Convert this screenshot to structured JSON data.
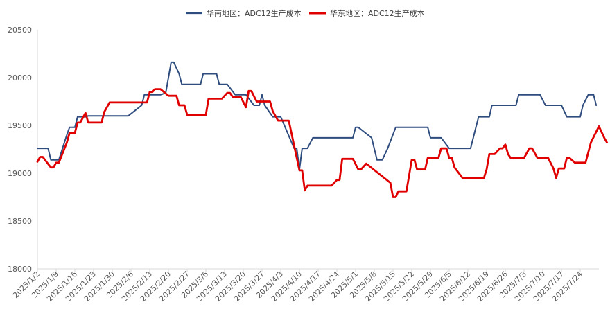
{
  "chart_data": {
    "type": "line",
    "title": "",
    "xlabel": "",
    "ylabel": "",
    "ylim": [
      18000,
      20500
    ],
    "yticks": [
      18000,
      18500,
      19000,
      19500,
      20000,
      20500
    ],
    "grid": false,
    "legend": "top",
    "x_tick_labels": [
      "2025/1/2",
      "2025/1/9",
      "2025/1/16",
      "2025/1/23",
      "2025/1/30",
      "2025/2/6",
      "2025/2/13",
      "2025/2/20",
      "2025/2/27",
      "2025/3/6",
      "2025/3/13",
      "2025/3/20",
      "2025/3/27",
      "2025/4/3",
      "2025/4/10",
      "2025/4/17",
      "2025/4/24",
      "2025/5/1",
      "2025/5/8",
      "2025/5/15",
      "2025/5/22",
      "2025/5/29",
      "2025/6/5",
      "2025/6/12",
      "2025/6/19",
      "2025/6/26",
      "2025/7/3",
      "2025/7/10",
      "2025/7/17",
      "2025/7/24"
    ],
    "series": [
      {
        "name": "华南地区：ADC12生产成本",
        "color": "#2E4C7E",
        "points": [
          [
            "2025/1/2",
            19260
          ],
          [
            "2025/1/6",
            19260
          ],
          [
            "2025/1/7",
            19140
          ],
          [
            "2025/1/10",
            19140
          ],
          [
            "2025/1/13",
            19400
          ],
          [
            "2025/1/14",
            19480
          ],
          [
            "2025/1/16",
            19480
          ],
          [
            "2025/1/17",
            19590
          ],
          [
            "2025/1/20",
            19590
          ],
          [
            "2025/1/21",
            19600
          ],
          [
            "2025/1/27",
            19600
          ],
          [
            "2025/2/5",
            19600
          ],
          [
            "2025/2/10",
            19710
          ],
          [
            "2025/2/11",
            19820
          ],
          [
            "2025/2/17",
            19820
          ],
          [
            "2025/2/19",
            19840
          ],
          [
            "2025/2/21",
            20160
          ],
          [
            "2025/2/22",
            20160
          ],
          [
            "2025/2/24",
            20040
          ],
          [
            "2025/2/25",
            19930
          ],
          [
            "2025/3/4",
            19930
          ],
          [
            "2025/3/5",
            20040
          ],
          [
            "2025/3/10",
            20040
          ],
          [
            "2025/3/11",
            19930
          ],
          [
            "2025/3/14",
            19930
          ],
          [
            "2025/3/17",
            19820
          ],
          [
            "2025/3/21",
            19820
          ],
          [
            "2025/3/24",
            19710
          ],
          [
            "2025/3/26",
            19710
          ],
          [
            "2025/3/27",
            19820
          ],
          [
            "2025/3/28",
            19710
          ],
          [
            "2025/3/31",
            19590
          ],
          [
            "2025/4/3",
            19590
          ],
          [
            "2025/4/8",
            19260
          ],
          [
            "2025/4/9",
            19260
          ],
          [
            "2025/4/10",
            19040
          ],
          [
            "2025/4/11",
            19260
          ],
          [
            "2025/4/13",
            19260
          ],
          [
            "2025/4/15",
            19370
          ],
          [
            "2025/4/30",
            19370
          ],
          [
            "2025/5/1",
            19480
          ],
          [
            "2025/5/2",
            19480
          ],
          [
            "2025/5/7",
            19370
          ],
          [
            "2025/5/9",
            19140
          ],
          [
            "2025/5/11",
            19140
          ],
          [
            "2025/5/13",
            19260
          ],
          [
            "2025/5/16",
            19480
          ],
          [
            "2025/5/28",
            19480
          ],
          [
            "2025/5/29",
            19370
          ],
          [
            "2025/6/2",
            19370
          ],
          [
            "2025/6/5",
            19260
          ],
          [
            "2025/6/13",
            19260
          ],
          [
            "2025/6/16",
            19590
          ],
          [
            "2025/6/20",
            19590
          ],
          [
            "2025/6/21",
            19710
          ],
          [
            "2025/6/30",
            19710
          ],
          [
            "2025/7/1",
            19820
          ],
          [
            "2025/7/9",
            19820
          ],
          [
            "2025/7/11",
            19710
          ],
          [
            "2025/7/17",
            19710
          ],
          [
            "2025/7/19",
            19590
          ],
          [
            "2025/7/24",
            19590
          ],
          [
            "2025/7/25",
            19710
          ],
          [
            "2025/7/27",
            19820
          ],
          [
            "2025/7/29",
            19820
          ],
          [
            "2025/7/30",
            19710
          ]
        ]
      },
      {
        "name": "华东地区：ADC12生产成本",
        "color": "#E00000",
        "points": [
          [
            "2025/1/2",
            19120
          ],
          [
            "2025/1/3",
            19170
          ],
          [
            "2025/1/4",
            19170
          ],
          [
            "2025/1/7",
            19060
          ],
          [
            "2025/1/8",
            19060
          ],
          [
            "2025/1/9",
            19110
          ],
          [
            "2025/1/10",
            19110
          ],
          [
            "2025/1/13",
            19320
          ],
          [
            "2025/1/14",
            19420
          ],
          [
            "2025/1/16",
            19420
          ],
          [
            "2025/1/17",
            19530
          ],
          [
            "2025/1/18",
            19530
          ],
          [
            "2025/1/20",
            19630
          ],
          [
            "2025/1/21",
            19530
          ],
          [
            "2025/1/26",
            19530
          ],
          [
            "2025/1/27",
            19640
          ],
          [
            "2025/1/29",
            19740
          ],
          [
            "2025/2/12",
            19740
          ],
          [
            "2025/2/13",
            19850
          ],
          [
            "2025/2/14",
            19850
          ],
          [
            "2025/2/15",
            19880
          ],
          [
            "2025/2/17",
            19880
          ],
          [
            "2025/2/20",
            19810
          ],
          [
            "2025/2/23",
            19810
          ],
          [
            "2025/2/24",
            19710
          ],
          [
            "2025/2/26",
            19710
          ],
          [
            "2025/2/27",
            19610
          ],
          [
            "2025/3/6",
            19610
          ],
          [
            "2025/3/7",
            19780
          ],
          [
            "2025/3/12",
            19780
          ],
          [
            "2025/3/14",
            19840
          ],
          [
            "2025/3/15",
            19840
          ],
          [
            "2025/3/16",
            19800
          ],
          [
            "2025/3/19",
            19800
          ],
          [
            "2025/3/21",
            19690
          ],
          [
            "2025/3/22",
            19860
          ],
          [
            "2025/3/23",
            19860
          ],
          [
            "2025/3/25",
            19750
          ],
          [
            "2025/3/30",
            19750
          ],
          [
            "2025/3/31",
            19650
          ],
          [
            "2025/4/2",
            19550
          ],
          [
            "2025/4/6",
            19550
          ],
          [
            "2025/4/10",
            19030
          ],
          [
            "2025/4/11",
            19030
          ],
          [
            "2025/4/12",
            18820
          ],
          [
            "2025/4/13",
            18870
          ],
          [
            "2025/4/22",
            18870
          ],
          [
            "2025/4/24",
            18930
          ],
          [
            "2025/4/25",
            18930
          ],
          [
            "2025/4/26",
            19150
          ],
          [
            "2025/4/30",
            19150
          ],
          [
            "2025/5/2",
            19040
          ],
          [
            "2025/5/3",
            19040
          ],
          [
            "2025/5/5",
            19100
          ],
          [
            "2025/5/14",
            18900
          ],
          [
            "2025/5/15",
            18750
          ],
          [
            "2025/5/16",
            18750
          ],
          [
            "2025/5/17",
            18810
          ],
          [
            "2025/5/20",
            18810
          ],
          [
            "2025/5/22",
            19140
          ],
          [
            "2025/5/23",
            19140
          ],
          [
            "2025/5/24",
            19040
          ],
          [
            "2025/5/27",
            19040
          ],
          [
            "2025/5/28",
            19160
          ],
          [
            "2025/6/1",
            19160
          ],
          [
            "2025/6/2",
            19260
          ],
          [
            "2025/6/4",
            19260
          ],
          [
            "2025/6/5",
            19160
          ],
          [
            "2025/6/6",
            19160
          ],
          [
            "2025/6/7",
            19060
          ],
          [
            "2025/6/10",
            18950
          ],
          [
            "2025/6/18",
            18950
          ],
          [
            "2025/6/19",
            19040
          ],
          [
            "2025/6/20",
            19200
          ],
          [
            "2025/6/22",
            19200
          ],
          [
            "2025/6/24",
            19260
          ],
          [
            "2025/6/25",
            19260
          ],
          [
            "2025/6/26",
            19300
          ],
          [
            "2025/6/27",
            19200
          ],
          [
            "2025/6/28",
            19160
          ],
          [
            "2025/7/3",
            19160
          ],
          [
            "2025/7/4",
            19210
          ],
          [
            "2025/7/5",
            19260
          ],
          [
            "2025/7/6",
            19260
          ],
          [
            "2025/7/8",
            19160
          ],
          [
            "2025/7/12",
            19160
          ],
          [
            "2025/7/14",
            19050
          ],
          [
            "2025/7/15",
            18950
          ],
          [
            "2025/7/16",
            19050
          ],
          [
            "2025/7/18",
            19050
          ],
          [
            "2025/7/19",
            19160
          ],
          [
            "2025/7/20",
            19160
          ],
          [
            "2025/7/22",
            19110
          ],
          [
            "2025/7/26",
            19110
          ],
          [
            "2025/7/28",
            19320
          ],
          [
            "2025/7/31",
            19490
          ],
          [
            "2025/8/2",
            19370
          ],
          [
            "2025/8/3",
            19320
          ]
        ]
      }
    ]
  }
}
